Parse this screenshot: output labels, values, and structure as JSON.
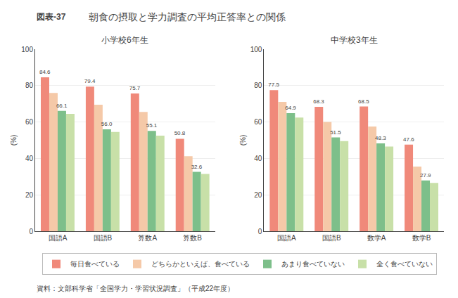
{
  "title": "朝食の摂取と学力調査の平均正答率との関係",
  "annotations": [
    "図表-37",
    "資料：文部科学省「全国学力・学習状況調査」（平成22年度）"
  ],
  "chart_data": [
    {
      "type": "bar",
      "subtitle": "小学校6年生",
      "ylabel": "(%)",
      "categories": [
        "国語A",
        "国語B",
        "算数A",
        "算数B"
      ],
      "series": [
        {
          "name": "毎日食べている",
          "color": "#f0897a",
          "values": [
            84.6,
            79.4,
            75.7,
            50.8
          ],
          "data_labels": true
        },
        {
          "name": "どちらかといえば、食べている",
          "color": "#f5c9a8",
          "values": [
            76.0,
            69.5,
            65.5,
            41.2
          ]
        },
        {
          "name": "あまり食べていない",
          "color": "#7dbf8a",
          "values": [
            66.1,
            56.0,
            55.1,
            32.6
          ],
          "data_labels": true,
          "value_labels": [
            "66.1",
            "56.0",
            "55.1",
            "32.6"
          ]
        },
        {
          "name": "全く食べていない",
          "color": "#c8e0a8",
          "values": [
            64.5,
            54.5,
            52.5,
            31.5
          ]
        }
      ],
      "ylim": [
        0,
        100
      ],
      "yticks": [
        0,
        20,
        40,
        60,
        80,
        100
      ],
      "grid": true,
      "legend": "bottom"
    },
    {
      "type": "bar",
      "subtitle": "中学校3年生",
      "ylabel": "(%)",
      "categories": [
        "国語A",
        "国語B",
        "数学A",
        "数学B"
      ],
      "series": [
        {
          "name": "毎日食べている",
          "color": "#f0897a",
          "values": [
            77.5,
            68.3,
            68.5,
            47.6
          ],
          "data_labels": true
        },
        {
          "name": "どちらかといえば、食べている",
          "color": "#f5c9a8",
          "values": [
            71.0,
            60.0,
            57.5,
            35.5
          ]
        },
        {
          "name": "あまり食べていない",
          "color": "#7dbf8a",
          "values": [
            64.9,
            51.5,
            48.3,
            27.9
          ],
          "data_labels": true
        },
        {
          "name": "全く食べていない",
          "color": "#c8e0a8",
          "values": [
            62.5,
            49.5,
            46.5,
            26.5
          ]
        }
      ],
      "ylim": [
        0,
        100
      ],
      "yticks": [
        0,
        20,
        40,
        60,
        80,
        100
      ],
      "grid": true
    }
  ]
}
